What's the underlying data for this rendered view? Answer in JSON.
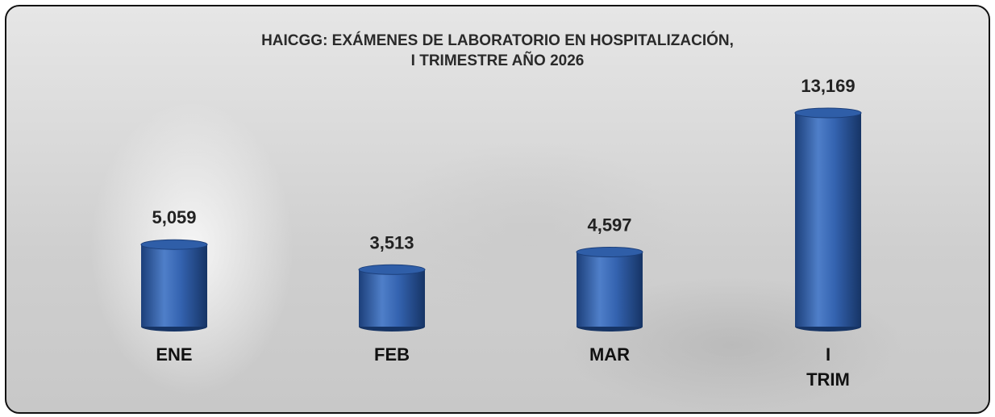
{
  "chart_data": {
    "type": "bar",
    "title": "HAICGG: EXÁMENES DE LABORATORIO EN HOSPITALIZACIÓN,\nI TRIMESTRE AÑO 2026",
    "categories": [
      "ENE",
      "FEB",
      "MAR",
      "I\nTRIM"
    ],
    "values": [
      5059,
      3513,
      4597,
      13169
    ],
    "value_labels": [
      "5,059",
      "3,513",
      "4,597",
      "13,169"
    ],
    "color": "#2f5ea8"
  }
}
